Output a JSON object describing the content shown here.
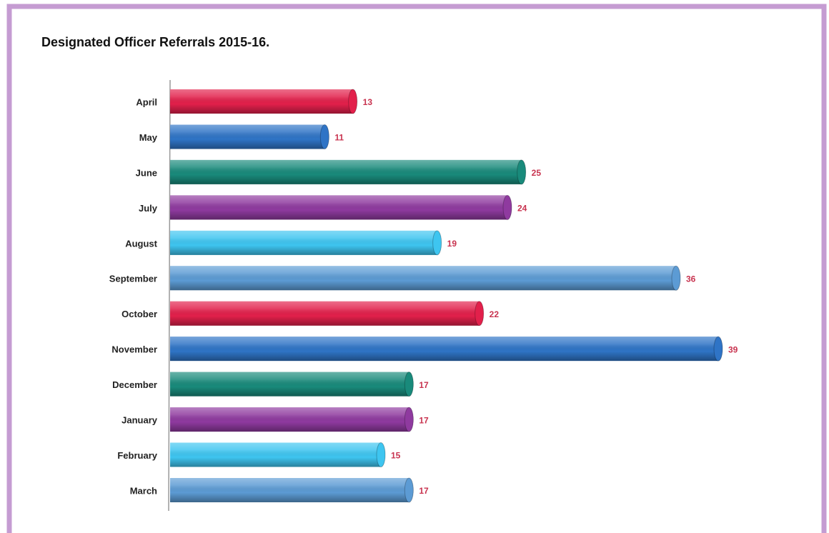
{
  "chart_data": {
    "type": "bar",
    "orientation": "horizontal",
    "title": "Designated Officer Referrals 2015-16.",
    "categories": [
      "April",
      "May",
      "June",
      "July",
      "August",
      "September",
      "October",
      "November",
      "December",
      "January",
      "February",
      "March"
    ],
    "values": [
      13,
      11,
      25,
      24,
      19,
      36,
      22,
      39,
      17,
      17,
      15,
      17
    ],
    "colors": [
      "#e2204b",
      "#2f74c6",
      "#198a7b",
      "#8f3a9f",
      "#3ec5f0",
      "#5c9bd4",
      "#e2204b",
      "#2f74c6",
      "#198a7b",
      "#8f3a9f",
      "#3ec5f0",
      "#5c9bd4"
    ],
    "grid": false
  }
}
